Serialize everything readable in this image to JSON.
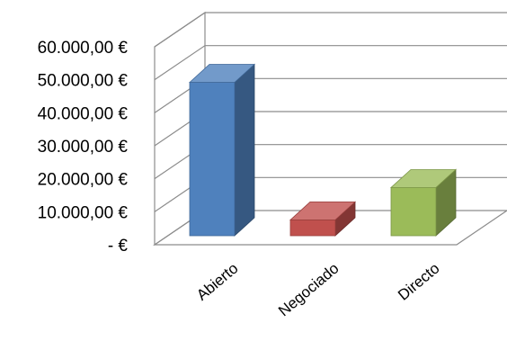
{
  "chart_data": {
    "type": "bar",
    "style": "3d-column",
    "categories": [
      "Abierto",
      "Negociado",
      "Directo"
    ],
    "values": [
      46500,
      4800,
      14600
    ],
    "colors": [
      "#4f81bd",
      "#c0504d",
      "#9bbb59"
    ],
    "ylim": [
      0,
      60000
    ],
    "yticks": [
      {
        "value": 0,
        "label": "-   €"
      },
      {
        "value": 10000,
        "label": "10.000,00 €"
      },
      {
        "value": 20000,
        "label": "20.000,00 €"
      },
      {
        "value": 30000,
        "label": "30.000,00 €"
      },
      {
        "value": 40000,
        "label": "40.000,00 €"
      },
      {
        "value": 50000,
        "label": "50.000,00 €"
      },
      {
        "value": 60000,
        "label": "60.000,00 €"
      }
    ],
    "grid": true,
    "legend": "none"
  }
}
